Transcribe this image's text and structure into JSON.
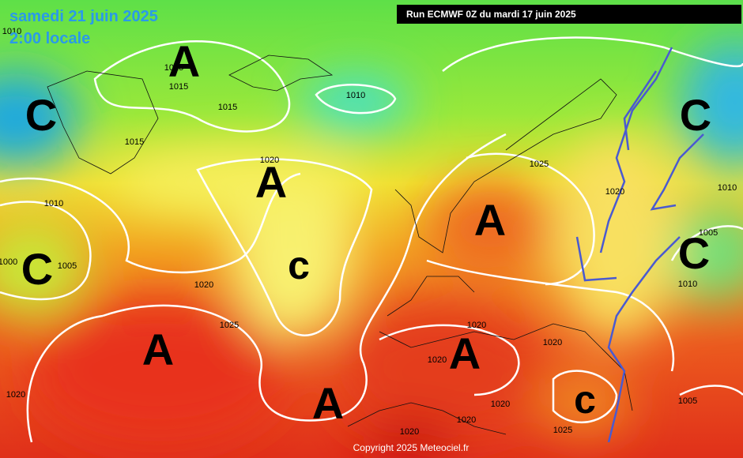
{
  "header": {
    "date": "samedi 21 juin 2025",
    "time": "2:00 locale"
  },
  "run": "Run ECMWF 0Z du mardi 17 juin 2025",
  "centers": [
    "A",
    "C",
    "A",
    "C",
    "c",
    "A",
    "C",
    "C",
    "A",
    "A",
    "A",
    "c"
  ],
  "isobar_labels": [
    1015,
    1015,
    1015,
    1015,
    1010,
    1020,
    1025,
    1020,
    1010,
    1010,
    1005,
    1005,
    1000,
    1010,
    1020,
    1025,
    1020,
    1020,
    1020,
    1020,
    1020,
    1020,
    1020,
    1025,
    1005,
    1010
  ],
  "copyright": "Copyright 2025 Meteociel.fr"
}
